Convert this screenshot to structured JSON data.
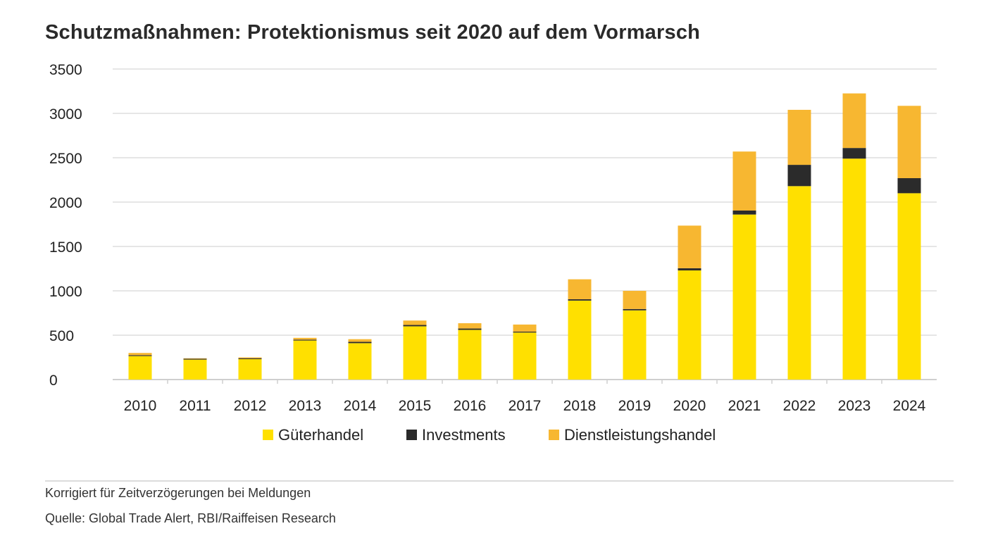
{
  "chart_data": {
    "type": "bar",
    "stacked": true,
    "title": "Schutzmaßnahmen: Protektionismus seit 2020 auf dem Vormarsch",
    "xlabel": "",
    "ylabel": "",
    "ylim": [
      0,
      3500
    ],
    "yticks": [
      0,
      500,
      1000,
      1500,
      2000,
      2500,
      3000,
      3500
    ],
    "grid": true,
    "legend_position": "bottom-center",
    "categories": [
      "2010",
      "2011",
      "2012",
      "2013",
      "2014",
      "2015",
      "2016",
      "2017",
      "2018",
      "2019",
      "2020",
      "2021",
      "2022",
      "2023",
      "2024"
    ],
    "series": [
      {
        "name": "Güterhandel",
        "color": "#ffe000",
        "values": [
          265,
          225,
          230,
          440,
          410,
          600,
          560,
          530,
          890,
          780,
          1230,
          1860,
          2180,
          2490,
          2100
        ]
      },
      {
        "name": "Investments",
        "color": "#2b2b2b",
        "values": [
          10,
          10,
          10,
          10,
          15,
          15,
          15,
          10,
          15,
          15,
          25,
          45,
          240,
          120,
          170
        ]
      },
      {
        "name": "Dienstleistungshandel",
        "color": "#f7b731",
        "values": [
          25,
          5,
          10,
          20,
          30,
          50,
          60,
          80,
          225,
          205,
          480,
          665,
          620,
          615,
          815
        ]
      }
    ]
  },
  "notes": {
    "line1": "Korrigiert für Zeitverzögerungen bei Meldungen",
    "line2": "Quelle: Global Trade Alert, RBI/Raiffeisen Research"
  }
}
